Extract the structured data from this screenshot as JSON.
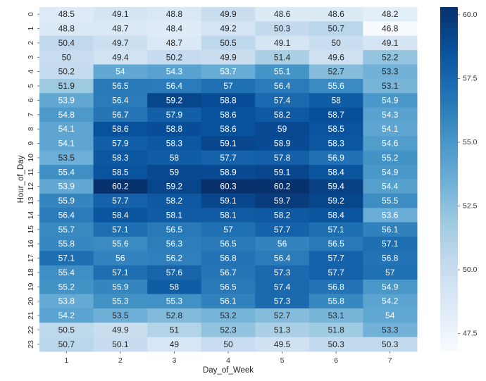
{
  "chart_data": {
    "type": "heatmap",
    "xlabel": "Day_of_Week",
    "ylabel": "Hour_of_Day",
    "x_categories": [
      "1",
      "2",
      "3",
      "4",
      "5",
      "6",
      "7"
    ],
    "y_categories": [
      "0",
      "1",
      "2",
      "3",
      "4",
      "5",
      "6",
      "7",
      "8",
      "9",
      "10",
      "11",
      "12",
      "13",
      "14",
      "15",
      "16",
      "17",
      "18",
      "19",
      "20",
      "21",
      "22",
      "23"
    ],
    "values": [
      [
        "48.5",
        "49.1",
        "48.8",
        "49.9",
        "48.6",
        "48.6",
        "48.2"
      ],
      [
        "48.8",
        "48.7",
        "48.4",
        "49.2",
        "50.3",
        "50.7",
        "46.8"
      ],
      [
        "50.4",
        "49.7",
        "48.7",
        "50.5",
        "49.1",
        "50",
        "49.1"
      ],
      [
        "50",
        "49.4",
        "50.2",
        "49.9",
        "51.4",
        "49.6",
        "52.2"
      ],
      [
        "50.2",
        "54",
        "54.3",
        "53.7",
        "55.1",
        "52.7",
        "53.3"
      ],
      [
        "51.9",
        "56.5",
        "56.4",
        "57",
        "56.4",
        "55.6",
        "53.1"
      ],
      [
        "53.9",
        "56.4",
        "59.2",
        "58.8",
        "57.4",
        "58",
        "54.9"
      ],
      [
        "54.8",
        "56.7",
        "57.9",
        "58.6",
        "58.2",
        "58.7",
        "54.3"
      ],
      [
        "54.1",
        "58.6",
        "58.8",
        "58.6",
        "59",
        "58.5",
        "54.1"
      ],
      [
        "54.1",
        "57.9",
        "58.3",
        "59.1",
        "58.9",
        "58.3",
        "54.6"
      ],
      [
        "53.5",
        "58.3",
        "58",
        "57.7",
        "57.8",
        "56.9",
        "55.2"
      ],
      [
        "55.4",
        "58.5",
        "59",
        "58.9",
        "59.1",
        "58.4",
        "54.9"
      ],
      [
        "53.9",
        "60.2",
        "59.2",
        "60.3",
        "60.2",
        "59.4",
        "54.4"
      ],
      [
        "55.9",
        "57.7",
        "58.2",
        "59.1",
        "59.7",
        "59.2",
        "55.5"
      ],
      [
        "56.4",
        "58.4",
        "58.1",
        "58.1",
        "58.2",
        "58.4",
        "53.6"
      ],
      [
        "55.7",
        "57.1",
        "56.5",
        "57",
        "57.7",
        "57.1",
        "56.1"
      ],
      [
        "55.8",
        "55.6",
        "56.3",
        "56.5",
        "56",
        "56.5",
        "57.1"
      ],
      [
        "57.1",
        "56",
        "56.2",
        "56.8",
        "56.4",
        "57.7",
        "56.8"
      ],
      [
        "55.4",
        "57.1",
        "57.6",
        "56.7",
        "57.3",
        "57.7",
        "57"
      ],
      [
        "55.2",
        "55.9",
        "58",
        "56.5",
        "57.4",
        "56.8",
        "54.9"
      ],
      [
        "53.8",
        "55.3",
        "55.3",
        "56.1",
        "57.3",
        "55.8",
        "54.2"
      ],
      [
        "54.2",
        "53.5",
        "52.8",
        "53.2",
        "52.7",
        "53.1",
        "54"
      ],
      [
        "50.5",
        "49.9",
        "51",
        "52.3",
        "51.3",
        "51.8",
        "53.3"
      ],
      [
        "50.7",
        "50.1",
        "49",
        "50",
        "49.5",
        "50.3",
        "50.3"
      ]
    ],
    "colorbar": {
      "min": 46.8,
      "max": 60.3,
      "ticks": [
        "47.5",
        "50.0",
        "52.5",
        "55.0",
        "57.5",
        "60.0"
      ]
    },
    "colormap": "Blues",
    "grid": false
  }
}
